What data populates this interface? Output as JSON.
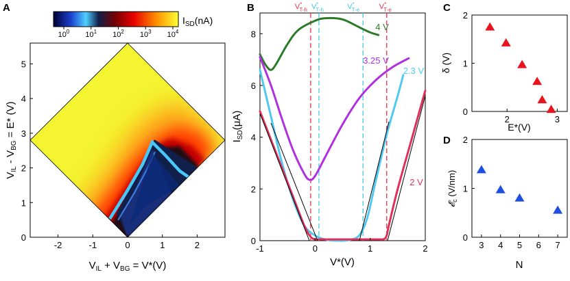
{
  "panels": {
    "a": "A",
    "b": "B",
    "c": "C",
    "d": "D"
  },
  "chart_data": [
    {
      "type": "heatmap",
      "panel": "A",
      "xlabel": "V_IL + V_BG = V*(V)",
      "ylabel": "V_IL - V_BG = E*(V)",
      "xlim": [
        -2.8,
        2.8
      ],
      "ylim": [
        0,
        5.6
      ],
      "xticks": [
        "-2",
        "-1",
        "0",
        "1",
        "2"
      ],
      "yticks": [
        "0",
        "1",
        "2",
        "3",
        "4",
        "5"
      ],
      "colorbar": {
        "label": "I_SD(nA)",
        "scale": "log",
        "ticks": [
          "10^0",
          "10^1",
          "10^2",
          "10^3",
          "10^4"
        ],
        "colors": [
          "#000033",
          "#1b3fcf",
          "#4fd0ff",
          "#10204a",
          "#7a0000",
          "#e60000",
          "#ff8c00",
          "#ffff33"
        ]
      }
    },
    {
      "type": "line",
      "panel": "B",
      "xlabel": "V*(V)",
      "ylabel": "I_SD(μA)",
      "xlim": [
        -1,
        2
      ],
      "ylim": [
        0,
        8.8
      ],
      "xticks": [
        "-1",
        "0",
        "1",
        "2"
      ],
      "yticks": [
        "0",
        "2",
        "4",
        "6",
        "8"
      ],
      "vlines": [
        {
          "label": "V*T-h",
          "x": -0.08,
          "color": "#e8304a"
        },
        {
          "label": "V*T-h",
          "x": 0.07,
          "color": "#40c8e0"
        },
        {
          "label": "V*T-e",
          "x": 0.87,
          "color": "#40c8e0"
        },
        {
          "label": "V*T-e",
          "x": 1.3,
          "color": "#e8304a"
        }
      ],
      "series": [
        {
          "name": "4 V",
          "color": "#2a7a2a",
          "x": [
            -1,
            -0.9,
            -0.8,
            -0.7,
            -0.5,
            -0.3,
            0,
            0.2,
            0.5,
            0.8,
            1.0,
            1.15
          ],
          "y": [
            7.2,
            6.8,
            6.6,
            6.85,
            7.6,
            8.15,
            8.5,
            8.6,
            8.55,
            8.25,
            8.05,
            7.95
          ]
        },
        {
          "name": "3.25 V",
          "color": "#b030e0",
          "x": [
            -1,
            -0.8,
            -0.6,
            -0.4,
            -0.2,
            -0.1,
            0,
            0.2,
            0.5,
            0.8,
            1.1,
            1.4,
            1.7
          ],
          "y": [
            7.1,
            6.0,
            4.7,
            3.5,
            2.6,
            2.35,
            2.5,
            3.3,
            4.5,
            5.5,
            6.2,
            6.7,
            7.05
          ]
        },
        {
          "name": "2.3 V",
          "color": "#50c8f0",
          "x": [
            -1,
            -0.8,
            -0.6,
            -0.4,
            -0.2,
            0,
            0.2,
            0.4,
            0.6,
            0.8,
            0.95,
            1.1,
            1.3,
            1.5,
            1.6
          ],
          "y": [
            6.6,
            4.8,
            3.0,
            1.6,
            0.6,
            0.2,
            0.04,
            0.0,
            0.02,
            0.2,
            0.9,
            2.3,
            4.1,
            5.6,
            6.4
          ]
        },
        {
          "name": "2 V",
          "color": "#e0305a",
          "x": [
            -1,
            -0.8,
            -0.6,
            -0.4,
            -0.2,
            -0.1,
            -0.02,
            0.1,
            0.4,
            0.8,
            1.15,
            1.25,
            1.3,
            1.34,
            1.5,
            1.75,
            2.0
          ],
          "y": [
            5.0,
            3.9,
            2.8,
            1.7,
            0.6,
            0.2,
            0.06,
            0.05,
            0.05,
            0.05,
            0.05,
            0.06,
            0.2,
            0.6,
            2.0,
            3.9,
            5.8
          ]
        }
      ]
    },
    {
      "type": "scatter",
      "panel": "C",
      "xlabel": "E*(V)",
      "ylabel": "δ (V)",
      "xlim": [
        1.3,
        3.2
      ],
      "ylim": [
        0,
        2
      ],
      "xticks": [
        "2",
        "3"
      ],
      "yticks": [
        "0",
        "1",
        "2"
      ],
      "marker_color": "#e8141e",
      "x": [
        1.66,
        1.98,
        2.3,
        2.6,
        2.7,
        2.88
      ],
      "y": [
        1.75,
        1.42,
        0.97,
        0.62,
        0.24,
        0.04
      ]
    },
    {
      "type": "scatter",
      "panel": "D",
      "xlabel": "N",
      "ylabel": "𝓔c (V/nm)",
      "xlim": [
        2.5,
        7.5
      ],
      "ylim": [
        0,
        2
      ],
      "xticks": [
        "3",
        "4",
        "5",
        "6",
        "7"
      ],
      "yticks": [
        "0",
        "1",
        "2"
      ],
      "marker_color": "#1e4fe0",
      "x": [
        3,
        4,
        5,
        7
      ],
      "y": [
        1.38,
        0.97,
        0.8,
        0.55
      ]
    }
  ]
}
